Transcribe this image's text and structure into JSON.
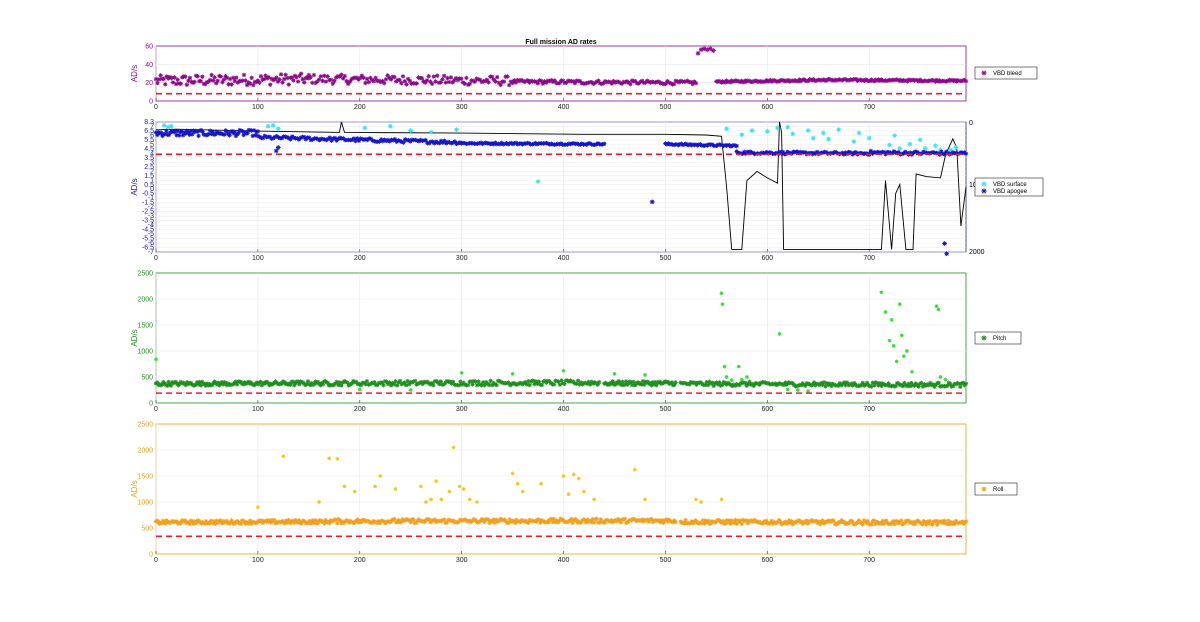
{
  "figure": {
    "title": "Full mission AD rates"
  },
  "chart_data": [
    {
      "type": "scatter",
      "id": "bleed",
      "ylabel": "AD/s",
      "xlim": [
        0,
        795
      ],
      "ylim": [
        0,
        60
      ],
      "xticks": [
        0,
        100,
        200,
        300,
        400,
        500,
        600,
        700
      ],
      "yticks": [
        0,
        20,
        40,
        60
      ],
      "axis_color": "#8b0a8b",
      "grid": true,
      "legend_position": "right",
      "threshold": {
        "y": 8,
        "color": "#e4202a",
        "style": "dashed"
      },
      "series": [
        {
          "name": "VBD bleed",
          "marker": "asterisk",
          "color": "#8b0a8b",
          "segments": [
            {
              "x0": 0,
              "x1": 150,
              "y0": 22,
              "y1": 24,
              "scatter": 6,
              "n": 100
            },
            {
              "x0": 150,
              "x1": 350,
              "y0": 24,
              "y1": 22,
              "scatter": 5,
              "n": 120
            },
            {
              "x0": 350,
              "x1": 530,
              "y0": 21,
              "y1": 20,
              "scatter": 2,
              "n": 110
            },
            {
              "x0": 550,
              "x1": 660,
              "y0": 21,
              "y1": 23,
              "scatter": 1,
              "n": 90
            },
            {
              "x0": 660,
              "x1": 795,
              "y0": 23,
              "y1": 22,
              "scatter": 1,
              "n": 100
            }
          ],
          "outliers": [
            [
              532,
              52
            ],
            [
              535,
              56
            ],
            [
              538,
              57
            ],
            [
              541,
              56
            ],
            [
              544,
              57
            ],
            [
              547,
              55
            ]
          ]
        }
      ]
    },
    {
      "type": "scatter",
      "id": "vbd",
      "ylabel": "AD/s",
      "xlim": [
        0,
        795
      ],
      "ylim": [
        -7,
        8.3
      ],
      "xticks": [
        0,
        100,
        200,
        300,
        400,
        500,
        600,
        700
      ],
      "ytick_labels": [
        "8.3",
        "7",
        "6.5",
        "6",
        "5.5",
        "5",
        "4.5",
        "4",
        "3.5",
        "3",
        "2.5",
        "2",
        "1.5",
        "1",
        "0.5",
        "0",
        "-0.5",
        "-1",
        "-1.5",
        "-2",
        "-2.5",
        "-3",
        "-3.5",
        "-4",
        "-4.5",
        "-5",
        "-5.5",
        "-6",
        "-6.5",
        "-7"
      ],
      "y2_ticks": [
        "0",
        "10",
        "2000"
      ],
      "axis_color": "#1a1aaa",
      "grid": true,
      "legend_position": "right",
      "threshold": {
        "y": 4.5,
        "color": "#e4202a",
        "style": "dashed"
      },
      "series": [
        {
          "name": "VBD surface",
          "marker": "asterisk",
          "color": "#33e3ee",
          "points": [
            [
              8,
              7.9
            ],
            [
              12,
              7.7
            ],
            [
              15,
              7.8
            ],
            [
              110,
              7.8
            ],
            [
              115,
              7.9
            ],
            [
              120,
              7.5
            ],
            [
              205,
              7.6
            ],
            [
              230,
              7.8
            ],
            [
              250,
              7.3
            ],
            [
              270,
              7.1
            ],
            [
              295,
              7.4
            ],
            [
              375,
              1.3
            ],
            [
              560,
              7.5
            ],
            [
              575,
              6.8
            ],
            [
              585,
              7.3
            ],
            [
              600,
              7.2
            ],
            [
              610,
              7.6
            ],
            [
              620,
              7.7
            ],
            [
              625,
              6.9
            ],
            [
              640,
              7.3
            ],
            [
              645,
              6.4
            ],
            [
              655,
              7.0
            ],
            [
              660,
              6.3
            ],
            [
              670,
              7.4
            ],
            [
              685,
              6.0
            ],
            [
              690,
              7.0
            ],
            [
              700,
              6.4
            ],
            [
              720,
              5.6
            ],
            [
              725,
              6.7
            ],
            [
              730,
              5.2
            ],
            [
              740,
              5.7
            ],
            [
              750,
              6.2
            ],
            [
              755,
              5.2
            ],
            [
              765,
              5.5
            ],
            [
              770,
              5.0
            ],
            [
              780,
              5.0
            ],
            [
              785,
              5.3
            ]
          ]
        },
        {
          "name": "VBD apogee",
          "marker": "asterisk",
          "color": "#1515c8",
          "segments": [
            {
              "x0": 0,
              "x1": 100,
              "y0": 7.0,
              "y1": 7.0,
              "scatter": 0.35,
              "n": 80
            },
            {
              "x0": 100,
              "x1": 300,
              "y0": 6.5,
              "y1": 5.9,
              "scatter": 0.2,
              "n": 120
            },
            {
              "x0": 300,
              "x1": 440,
              "y0": 5.8,
              "y1": 5.7,
              "scatter": 0.1,
              "n": 90
            },
            {
              "x0": 500,
              "x1": 570,
              "y0": 5.7,
              "y1": 5.5,
              "scatter": 0.1,
              "n": 50
            },
            {
              "x0": 570,
              "x1": 700,
              "y0": 4.7,
              "y1": 4.6,
              "scatter": 0.15,
              "n": 90
            },
            {
              "x0": 700,
              "x1": 795,
              "y0": 4.7,
              "y1": 4.6,
              "scatter": 0.2,
              "n": 60
            }
          ],
          "outliers": [
            [
              120,
              5.3
            ],
            [
              118,
              4.9
            ],
            [
              487,
              -1.1
            ],
            [
              774,
              -6.0
            ],
            [
              776,
              -7.2
            ]
          ]
        }
      ],
      "depth_line": {
        "color": "#000000",
        "y2_range": [
          0,
          1000
        ],
        "points": [
          [
            0,
            60
          ],
          [
            20,
            55
          ],
          [
            100,
            70
          ],
          [
            180,
            80
          ],
          [
            182,
            0
          ],
          [
            185,
            80
          ],
          [
            300,
            85
          ],
          [
            420,
            95
          ],
          [
            500,
            95
          ],
          [
            540,
            100
          ],
          [
            555,
            110
          ],
          [
            560,
            500
          ],
          [
            565,
            980
          ],
          [
            575,
            980
          ],
          [
            580,
            450
          ],
          [
            590,
            380
          ],
          [
            600,
            430
          ],
          [
            610,
            470
          ],
          [
            612,
            0
          ],
          [
            614,
            80
          ],
          [
            616,
            980
          ],
          [
            700,
            980
          ],
          [
            712,
            980
          ],
          [
            716,
            450
          ],
          [
            722,
            980
          ],
          [
            726,
            550
          ],
          [
            730,
            480
          ],
          [
            736,
            980
          ],
          [
            743,
            980
          ],
          [
            746,
            400
          ],
          [
            756,
            420
          ],
          [
            770,
            430
          ],
          [
            775,
            250
          ],
          [
            782,
            130
          ],
          [
            786,
            200
          ],
          [
            790,
            800
          ],
          [
            795,
            500
          ]
        ]
      }
    },
    {
      "type": "scatter",
      "id": "pitch",
      "ylabel": "AD/s",
      "xlim": [
        0,
        795
      ],
      "ylim": [
        0,
        2500
      ],
      "xticks": [
        0,
        100,
        200,
        300,
        400,
        500,
        600,
        700
      ],
      "yticks": [
        0,
        500,
        1000,
        1500,
        2000,
        2500
      ],
      "axis_color": "#1f8f1f",
      "grid": true,
      "legend_position": "right",
      "threshold": {
        "y": 190,
        "color": "#e4202a",
        "style": "dashed"
      },
      "series": [
        {
          "name": "Pitch",
          "marker": "asterisk",
          "color": "#1f8f1f",
          "segments": [
            {
              "x0": 0,
              "x1": 170,
              "y0": 370,
              "y1": 380,
              "scatter": 40,
              "n": 140
            },
            {
              "x0": 170,
              "x1": 435,
              "y0": 380,
              "y1": 390,
              "scatter": 45,
              "n": 180
            },
            {
              "x0": 440,
              "x1": 510,
              "y0": 380,
              "y1": 380,
              "scatter": 40,
              "n": 60
            },
            {
              "x0": 515,
              "x1": 795,
              "y0": 370,
              "y1": 350,
              "scatter": 40,
              "n": 200
            }
          ],
          "extra_color": "#33dd33",
          "extras": [
            [
              0,
              840
            ],
            [
              400,
              620
            ],
            [
              450,
              560
            ],
            [
              555,
              2110
            ],
            [
              556,
              1900
            ],
            [
              558,
              700
            ],
            [
              560,
              500
            ],
            [
              565,
              440
            ],
            [
              572,
              700
            ],
            [
              575,
              450
            ],
            [
              580,
              500
            ],
            [
              612,
              1330
            ],
            [
              620,
              260
            ],
            [
              630,
              250
            ],
            [
              640,
              230
            ],
            [
              712,
              2130
            ],
            [
              716,
              1750
            ],
            [
              720,
              1200
            ],
            [
              722,
              1600
            ],
            [
              724,
              1100
            ],
            [
              727,
              800
            ],
            [
              730,
              1900
            ],
            [
              732,
              1300
            ],
            [
              734,
              900
            ],
            [
              737,
              1000
            ],
            [
              742,
              600
            ],
            [
              766,
              1860
            ],
            [
              768,
              1800
            ],
            [
              770,
              500
            ],
            [
              775,
              450
            ],
            [
              300,
              580
            ],
            [
              350,
              560
            ],
            [
              480,
              540
            ],
            [
              200,
              260
            ],
            [
              250,
              250
            ]
          ]
        }
      ]
    },
    {
      "type": "scatter",
      "id": "roll",
      "ylabel": "AD/s",
      "xlim": [
        0,
        795
      ],
      "ylim": [
        0,
        2500
      ],
      "xticks": [
        0,
        100,
        200,
        300,
        400,
        500,
        600,
        700
      ],
      "yticks": [
        0,
        500,
        1000,
        1500,
        2000,
        2500
      ],
      "axis_color": "#e8a010",
      "grid": true,
      "legend_position": "right",
      "threshold": {
        "y": 340,
        "color": "#e4202a",
        "style": "dashed"
      },
      "series": [
        {
          "name": "Roll",
          "marker": "asterisk",
          "color": "#f0a020",
          "segments": [
            {
              "x0": 0,
              "x1": 170,
              "y0": 610,
              "y1": 620,
              "scatter": 35,
              "n": 150
            },
            {
              "x0": 170,
              "x1": 510,
              "y0": 630,
              "y1": 640,
              "scatter": 40,
              "n": 260
            },
            {
              "x0": 515,
              "x1": 795,
              "y0": 620,
              "y1": 600,
              "scatter": 40,
              "n": 230
            }
          ],
          "extra_color": "#f5c518",
          "extras": [
            [
              100,
              900
            ],
            [
              125,
              1880
            ],
            [
              170,
              1840
            ],
            [
              178,
              1830
            ],
            [
              185,
              1300
            ],
            [
              195,
              1200
            ],
            [
              215,
              1300
            ],
            [
              220,
              1500
            ],
            [
              235,
              1250
            ],
            [
              260,
              1300
            ],
            [
              265,
              1000
            ],
            [
              270,
              1050
            ],
            [
              275,
              1400
            ],
            [
              280,
              1050
            ],
            [
              288,
              1200
            ],
            [
              292,
              2050
            ],
            [
              298,
              1300
            ],
            [
              302,
              1250
            ],
            [
              308,
              1050
            ],
            [
              315,
              1000
            ],
            [
              350,
              1550
            ],
            [
              355,
              1350
            ],
            [
              360,
              1200
            ],
            [
              378,
              1350
            ],
            [
              400,
              1500
            ],
            [
              405,
              1150
            ],
            [
              410,
              1530
            ],
            [
              415,
              1450
            ],
            [
              420,
              1200
            ],
            [
              430,
              1050
            ],
            [
              470,
              1620
            ],
            [
              480,
              1050
            ],
            [
              530,
              1050
            ],
            [
              535,
              1000
            ],
            [
              555,
              1050
            ],
            [
              160,
              1000
            ]
          ]
        }
      ]
    }
  ]
}
